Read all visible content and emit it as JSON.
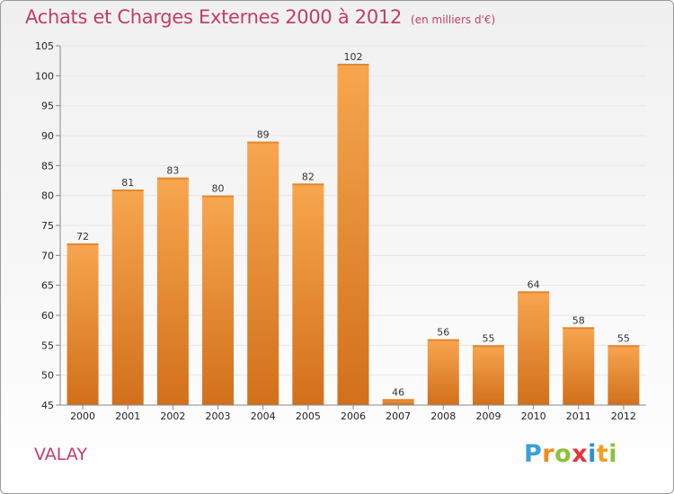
{
  "header": {
    "title": "Achats et Charges Externes 2000 à 2012",
    "unit": "(en milliers d'€)"
  },
  "footer": {
    "commune": "VALAY",
    "logo_letters": [
      "P",
      "r",
      "o",
      "x",
      "i",
      "t",
      "i"
    ],
    "logo_colors": [
      "#3aa0d8",
      "#f08c1e",
      "#8ac33c",
      "#e8323c",
      "#2f8fd0",
      "#f0a020",
      "#8ac33c"
    ]
  },
  "colors": {
    "bar_light": "#f7a64f",
    "bar_dark": "#d2701b",
    "axis": "#888888",
    "grid": "#e6e6e6"
  },
  "chart_data": {
    "type": "bar",
    "title": "Achats et Charges Externes 2000 à 2012",
    "subtitle": "(en milliers d'€)",
    "categories": [
      "2000",
      "2001",
      "2002",
      "2003",
      "2004",
      "2005",
      "2006",
      "2007",
      "2008",
      "2009",
      "2010",
      "2011",
      "2012"
    ],
    "values": [
      72,
      81,
      83,
      80,
      89,
      82,
      102,
      46,
      56,
      55,
      64,
      58,
      55
    ],
    "ylim": [
      45,
      105
    ],
    "yticks": [
      45,
      50,
      55,
      60,
      65,
      70,
      75,
      80,
      85,
      90,
      95,
      100,
      105
    ],
    "grid": true,
    "xlabel": "",
    "ylabel": ""
  }
}
